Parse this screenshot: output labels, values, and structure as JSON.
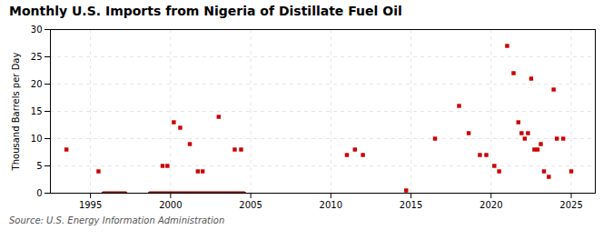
{
  "chart_data": {
    "type": "scatter",
    "title": "Monthly U.S. Imports from Nigeria of Distillate Fuel Oil",
    "ylabel": "Thousand Barrels per Day",
    "source": "Source: U.S. Energy Information Administration",
    "xlim": [
      1992.5,
      2026.5
    ],
    "ylim": [
      0,
      30
    ],
    "xticks": [
      1995,
      2000,
      2005,
      2010,
      2015,
      2020,
      2025
    ],
    "yticks": [
      0,
      5,
      10,
      15,
      20,
      25,
      30
    ],
    "grid": true,
    "series": [
      {
        "type": "scatter",
        "color": "#cc0000",
        "marker": "square",
        "x": [
          1993.5,
          1995.5,
          1999.5,
          1999.8,
          2000.2,
          2000.6,
          2001.2,
          2001.7,
          2002.0,
          2003.0,
          2004.0,
          2004.4,
          2011.0,
          2011.5,
          2012.0,
          2014.7,
          2016.5,
          2018.0,
          2018.6,
          2019.3,
          2019.7,
          2020.2,
          2020.5,
          2021.0,
          2021.4,
          2021.7,
          2021.9,
          2022.1,
          2022.3,
          2022.5,
          2022.7,
          2022.9,
          2023.1,
          2023.3,
          2023.6,
          2023.9,
          2024.1,
          2024.5,
          2025.0
        ],
        "values": [
          8,
          4,
          5,
          5,
          13,
          12,
          9,
          4,
          4,
          14,
          8,
          8,
          7,
          8,
          7,
          0.5,
          10,
          16,
          11,
          7,
          7,
          5,
          4,
          27,
          22,
          13,
          11,
          10,
          11,
          21,
          8,
          8,
          9,
          4,
          3,
          19,
          10,
          10,
          4
        ]
      },
      {
        "type": "line",
        "color": "#8b0000",
        "x": [
          1995.8,
          1997.2
        ],
        "values": [
          0,
          0
        ]
      },
      {
        "type": "line",
        "color": "#8b0000",
        "x": [
          1998.7,
          2004.6
        ],
        "values": [
          0,
          0
        ]
      }
    ]
  }
}
